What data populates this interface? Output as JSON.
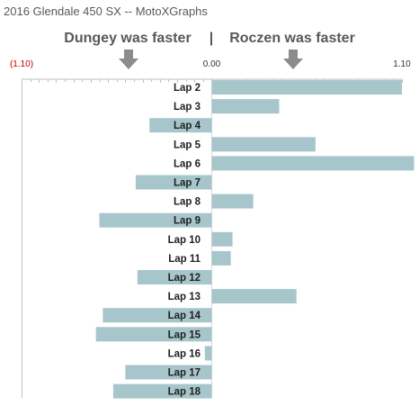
{
  "chart_data": {
    "type": "bar",
    "orientation": "horizontal",
    "title": "2016 Glendale 450 SX -- MotoXGraphs",
    "left_header": "Dungey was faster",
    "separator": "|",
    "right_header": "Roczen was faster",
    "x_ticks": [
      {
        "value": -1.1,
        "label": "(1.10)"
      },
      {
        "value": 0.0,
        "label": "0.00"
      },
      {
        "value": 1.1,
        "label": "1.10"
      }
    ],
    "xlim": [
      -1.1,
      1.1
    ],
    "grid": false,
    "categories": [
      "Lap 2",
      "Lap 3",
      "Lap 4",
      "Lap 5",
      "Lap 6",
      "Lap 7",
      "Lap 8",
      "Lap 9",
      "Lap 10",
      "Lap 11",
      "Lap 12",
      "Lap 13",
      "Lap 14",
      "Lap 15",
      "Lap 16",
      "Lap 17",
      "Lap 18"
    ],
    "values": [
      1.1,
      0.39,
      -0.36,
      0.6,
      1.17,
      -0.44,
      0.24,
      -0.65,
      0.12,
      0.11,
      -0.43,
      0.49,
      -0.63,
      -0.67,
      -0.04,
      -0.5,
      -0.57
    ],
    "colors": {
      "bar": "#a7c6cb",
      "label": "#1f1f1f",
      "axis": "#bfbfbf",
      "negative_tick": "#c00000",
      "header": "#595959",
      "arrow": "#8c8c8c"
    }
  }
}
